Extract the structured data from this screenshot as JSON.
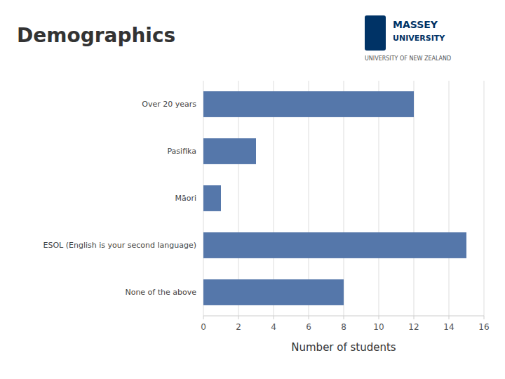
{
  "chart_data": {
    "type": "bar",
    "orientation": "horizontal",
    "title": "Demographics",
    "categories": [
      "None of the above",
      "ESOL (English is your second language)",
      "Māori",
      "Pasifika",
      "Over 20 years"
    ],
    "values": [
      8,
      15,
      1,
      3,
      12
    ],
    "color": "#5577AA",
    "x_label": "Number of students",
    "xlim": [
      0,
      16
    ],
    "xticks": [
      0,
      2,
      4,
      6,
      8,
      10,
      12,
      14,
      16
    ],
    "grid": true,
    "annotations": [
      "MASSEY",
      "UNIVERSITY",
      "UNIVERSITY OF NEW ZEALAND"
    ]
  }
}
